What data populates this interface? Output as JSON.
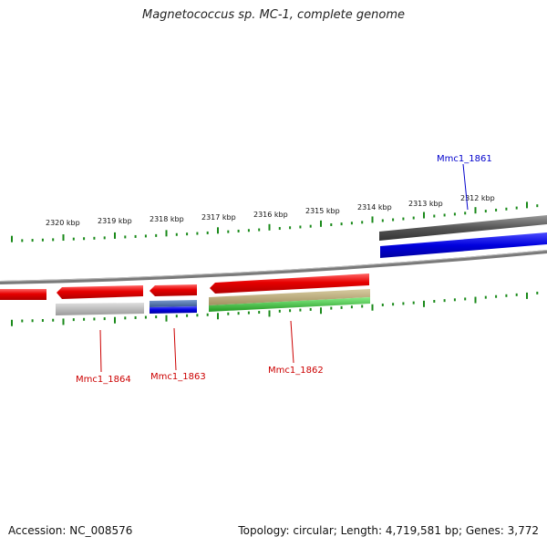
{
  "title": "Magnetococcus sp. MC-1, complete genome",
  "footer": {
    "accession": "Accession: NC_008576",
    "stats": "Topology: circular; Length: 4,719,581 bp; Genes: 3,772"
  },
  "ruler": {
    "tick_labels": [
      "2320 kbp",
      "2319 kbp",
      "2318 kbp",
      "2317 kbp",
      "2316 kbp",
      "2315 kbp",
      "2314 kbp",
      "2313 kbp",
      "2312 kbp"
    ],
    "tick_color": "#1a8a1a"
  },
  "genes": [
    {
      "name": "Mmc1_1861",
      "color": "#0000cc"
    },
    {
      "name": "Mmc1_1864",
      "color": "#cc0000"
    },
    {
      "name": "Mmc1_1863",
      "color": "#cc0000"
    },
    {
      "name": "Mmc1_1862",
      "color": "#cc0000"
    }
  ],
  "colors": {
    "forward_gene": "#e60000",
    "reverse_gene": "#0000dd",
    "backbone": "#808080",
    "grey_gene": "#bdbdbd",
    "steel": "#4a6fa5",
    "khaki": "#b8a878",
    "green": "#33cc33",
    "dark_grey": "#555555"
  }
}
